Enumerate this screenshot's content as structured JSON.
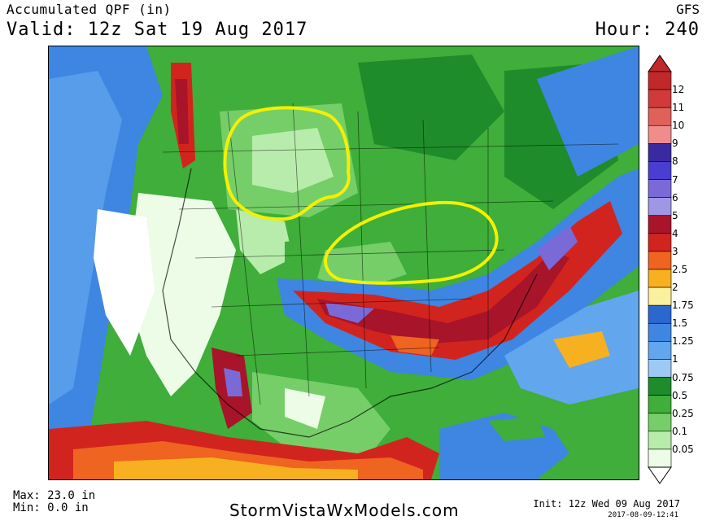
{
  "header": {
    "title": "Accumulated QPF (in)",
    "valid": "Valid: 12z Sat 19 Aug 2017",
    "model": "GFS",
    "hour": "Hour: 240"
  },
  "legend": {
    "levels": [
      "12",
      "11",
      "10",
      "9",
      "8",
      "7",
      "6",
      "5",
      "4",
      "3",
      "2.5",
      "2",
      "1.75",
      "1.5",
      "1.25",
      "1",
      "0.75",
      "0.5",
      "0.25",
      "0.1",
      "0.05"
    ],
    "colors": [
      "#c0282a",
      "#d13a3a",
      "#e0605a",
      "#f08c8c",
      "#3a2aa0",
      "#4a3ed0",
      "#7a6ad8",
      "#9e96e6",
      "#a8142a",
      "#d2241e",
      "#ee6420",
      "#f6b020",
      "#fbf0a0",
      "#2a68d0",
      "#3e86e2",
      "#62a6ee",
      "#9ccaf4",
      "#1e8c2a",
      "#3fae3a",
      "#76ce68",
      "#b8ecac",
      "#ecfce6"
    ]
  },
  "footer": {
    "max": "Max: 23.0 in",
    "min": "Min: 0.0 in",
    "site": "StormVistaWxModels.com",
    "init": "Init: 12z Wed 09 Aug 2017",
    "stamp": "2017-08-09-12:41"
  },
  "map": {
    "highlight_color": "#f4f000",
    "highlighted_regions": 2
  }
}
